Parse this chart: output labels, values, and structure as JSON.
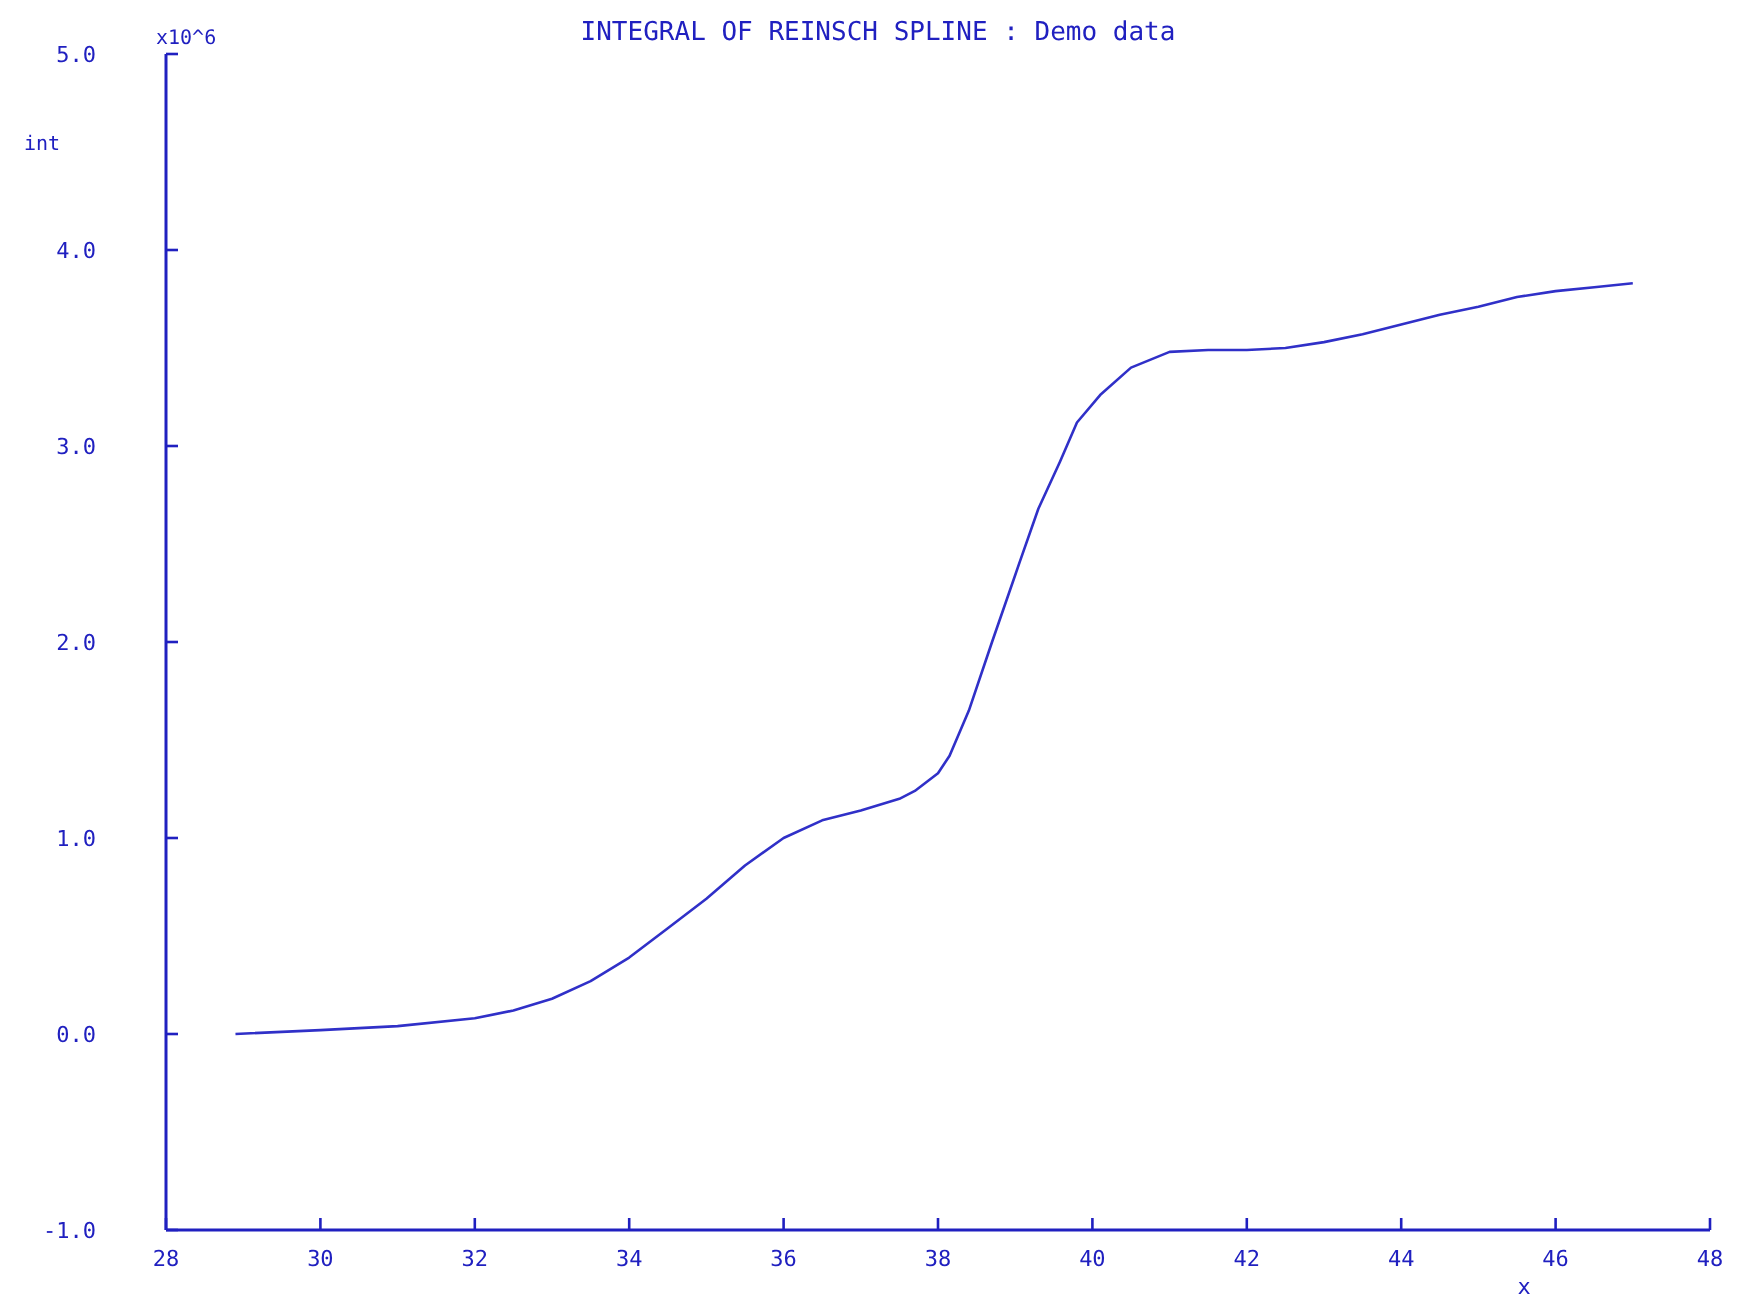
{
  "chart_data": {
    "type": "line",
    "title": "INTEGRAL OF REINSCH SPLINE : Demo data",
    "xlabel": "x",
    "ylabel": "int",
    "annotations": [
      "x10^6"
    ],
    "x": [
      28.9,
      30,
      31,
      32,
      32.5,
      33,
      33.5,
      34,
      34.5,
      35,
      35.5,
      36,
      36.5,
      37,
      37.5,
      37.7,
      38,
      38.15,
      38.4,
      38.7,
      39.06,
      39.3,
      39.58,
      39.8,
      40.1,
      40.5,
      41,
      41.5,
      42,
      42.5,
      43,
      43.5,
      44,
      44.5,
      45,
      45.5,
      46,
      46.5,
      47
    ],
    "series": [
      {
        "color": "#3030c8",
        "values": [
          0.0,
          0.02,
          0.04,
          0.08,
          0.12,
          0.18,
          0.27,
          0.39,
          0.54,
          0.69,
          0.86,
          1.0,
          1.09,
          1.14,
          1.2,
          1.24,
          1.33,
          1.42,
          1.65,
          2.0,
          2.41,
          2.68,
          2.92,
          3.12,
          3.26,
          3.4,
          3.48,
          3.49,
          3.49,
          3.5,
          3.53,
          3.57,
          3.62,
          3.67,
          3.71,
          3.76,
          3.79,
          3.81,
          3.83
        ]
      }
    ],
    "xlim": [
      28,
      48
    ],
    "xticks": [
      28,
      30,
      32,
      34,
      36,
      38,
      40,
      42,
      44,
      46,
      48
    ],
    "ylim": [
      -1,
      5
    ],
    "yticks": [
      {
        "value": -1,
        "label": "-1.0"
      },
      {
        "value": 0,
        "label": "0.0"
      },
      {
        "value": 1,
        "label": "1.0"
      },
      {
        "value": 2,
        "label": "2.0"
      },
      {
        "value": 3,
        "label": "3.0"
      },
      {
        "value": 4,
        "label": "4.0"
      },
      {
        "value": 5,
        "label": "5.0"
      }
    ],
    "grid": false,
    "marker": "none",
    "line_style": "solid"
  }
}
